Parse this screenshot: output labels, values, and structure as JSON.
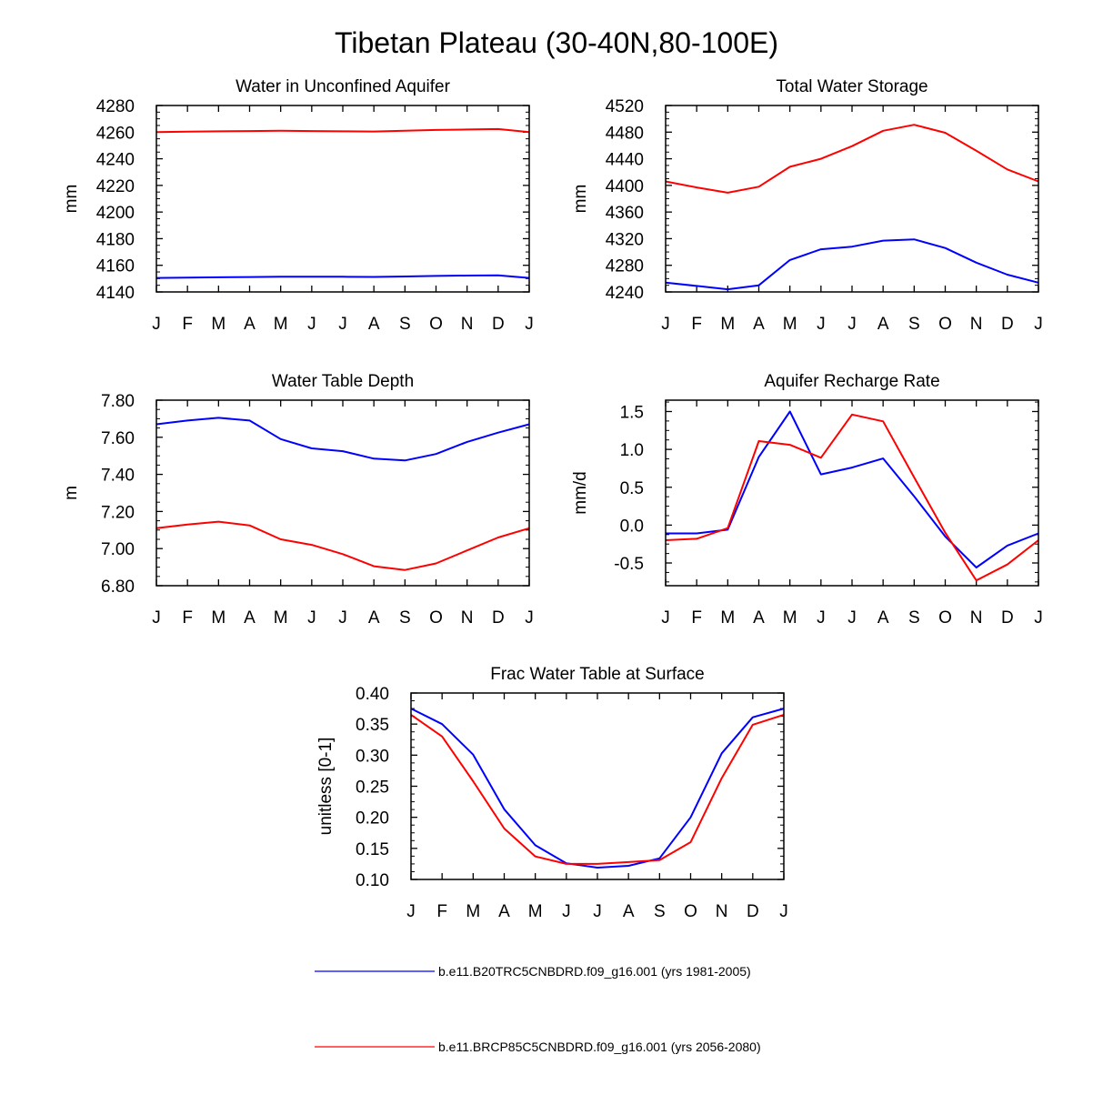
{
  "figure_title": "Tibetan Plateau (30-40N,80-100E)",
  "colors": {
    "series1": "#0000ff",
    "series2": "#ff0000"
  },
  "legend": [
    {
      "label": "b.e11.B20TRC5CNBDRD.f09_g16.001 (yrs 1981-2005)",
      "color": "#0000ff"
    },
    {
      "label": "b.e11.BRCP85C5CNBDRD.f09_g16.001 (yrs 2056-2080)",
      "color": "#ff0000"
    }
  ],
  "chart_data": [
    {
      "type": "line",
      "title": "Water in Unconfined Aquifer",
      "xlabel": "",
      "ylabel": "mm",
      "categories": [
        "J",
        "F",
        "M",
        "A",
        "M",
        "J",
        "J",
        "A",
        "S",
        "O",
        "N",
        "D",
        "J"
      ],
      "ylim": [
        4140,
        4280
      ],
      "yticks": [
        4140,
        4160,
        4180,
        4200,
        4220,
        4240,
        4260,
        4280
      ],
      "ytick_labels": [
        "4140",
        "4160",
        "4180",
        "4200",
        "4220",
        "4240",
        "4260",
        "4280"
      ],
      "series": [
        {
          "name": "b.e11.B20TRC5CNBDRD.f09_g16.001 (yrs 1981-2005)",
          "color": "#0000ff",
          "values": [
            4150.5,
            4150.8,
            4151.0,
            4151.2,
            4151.4,
            4151.5,
            4151.4,
            4151.3,
            4151.6,
            4152.0,
            4152.3,
            4152.5,
            4150.5
          ]
        },
        {
          "name": "b.e11.BRCP85C5CNBDRD.f09_g16.001 (yrs 2056-2080)",
          "color": "#ff0000",
          "values": [
            4260.0,
            4260.3,
            4260.6,
            4260.8,
            4261.0,
            4260.8,
            4260.6,
            4260.5,
            4261.0,
            4261.6,
            4262.0,
            4262.3,
            4260.0
          ]
        }
      ]
    },
    {
      "type": "line",
      "title": "Total Water Storage",
      "xlabel": "",
      "ylabel": "mm",
      "categories": [
        "J",
        "F",
        "M",
        "A",
        "M",
        "J",
        "J",
        "A",
        "S",
        "O",
        "N",
        "D",
        "J"
      ],
      "ylim": [
        4240,
        4520
      ],
      "yticks": [
        4240,
        4280,
        4320,
        4360,
        4400,
        4440,
        4480,
        4520
      ],
      "ytick_labels": [
        "4240",
        "4280",
        "4320",
        "4360",
        "4400",
        "4440",
        "4480",
        "4520"
      ],
      "series": [
        {
          "name": "b.e11.B20TRC5CNBDRD.f09_g16.001 (yrs 1981-2005)",
          "color": "#0000ff",
          "values": [
            4254,
            4249,
            4244,
            4250,
            4288,
            4304,
            4308,
            4317,
            4319,
            4306,
            4284,
            4266,
            4254
          ]
        },
        {
          "name": "b.e11.BRCP85C5CNBDRD.f09_g16.001 (yrs 2056-2080)",
          "color": "#ff0000",
          "values": [
            4406,
            4397,
            4389,
            4398,
            4428,
            4440,
            4459,
            4482,
            4491,
            4479,
            4452,
            4424,
            4406
          ]
        }
      ]
    },
    {
      "type": "line",
      "title": "Water Table Depth",
      "xlabel": "",
      "ylabel": "m",
      "categories": [
        "J",
        "F",
        "M",
        "A",
        "M",
        "J",
        "J",
        "A",
        "S",
        "O",
        "N",
        "D",
        "J"
      ],
      "ylim": [
        6.8,
        7.8
      ],
      "yticks": [
        6.8,
        7.0,
        7.2,
        7.4,
        7.6,
        7.8
      ],
      "ytick_labels": [
        "6.80",
        "7.00",
        "7.20",
        "7.40",
        "7.60",
        "7.80"
      ],
      "series": [
        {
          "name": "b.e11.B20TRC5CNBDRD.f09_g16.001 (yrs 1981-2005)",
          "color": "#0000ff",
          "values": [
            7.67,
            7.69,
            7.705,
            7.69,
            7.59,
            7.54,
            7.525,
            7.485,
            7.475,
            7.51,
            7.575,
            7.625,
            7.67
          ]
        },
        {
          "name": "b.e11.BRCP85C5CNBDRD.f09_g16.001 (yrs 2056-2080)",
          "color": "#ff0000",
          "values": [
            7.11,
            7.13,
            7.145,
            7.125,
            7.05,
            7.02,
            6.97,
            6.905,
            6.885,
            6.92,
            6.99,
            7.06,
            7.11
          ]
        }
      ]
    },
    {
      "type": "line",
      "title": "Aquifer Recharge Rate",
      "xlabel": "",
      "ylabel": "mm/d",
      "categories": [
        "J",
        "F",
        "M",
        "A",
        "M",
        "J",
        "J",
        "A",
        "S",
        "O",
        "N",
        "D",
        "J"
      ],
      "ylim": [
        -0.8,
        1.65
      ],
      "yticks": [
        -0.5,
        0.0,
        0.5,
        1.0,
        1.5
      ],
      "ytick_labels": [
        "-0.5",
        "0.0",
        "0.5",
        "1.0",
        "1.5"
      ],
      "series": [
        {
          "name": "b.e11.B20TRC5CNBDRD.f09_g16.001 (yrs 1981-2005)",
          "color": "#0000ff",
          "values": [
            -0.11,
            -0.11,
            -0.06,
            0.9,
            1.5,
            0.67,
            0.76,
            0.88,
            0.38,
            -0.15,
            -0.56,
            -0.27,
            -0.11
          ]
        },
        {
          "name": "b.e11.BRCP85C5CNBDRD.f09_g16.001 (yrs 2056-2080)",
          "color": "#ff0000",
          "values": [
            -0.2,
            -0.18,
            -0.04,
            1.11,
            1.06,
            0.89,
            1.46,
            1.37,
            0.63,
            -0.1,
            -0.73,
            -0.52,
            -0.2
          ]
        }
      ]
    },
    {
      "type": "line",
      "title": "Frac Water Table at Surface",
      "xlabel": "",
      "ylabel": "unitless [0-1]",
      "categories": [
        "J",
        "F",
        "M",
        "A",
        "M",
        "J",
        "J",
        "A",
        "S",
        "O",
        "N",
        "D",
        "J"
      ],
      "ylim": [
        0.1,
        0.4
      ],
      "yticks": [
        0.1,
        0.15,
        0.2,
        0.25,
        0.3,
        0.35,
        0.4
      ],
      "ytick_labels": [
        "0.10",
        "0.15",
        "0.20",
        "0.25",
        "0.30",
        "0.35",
        "0.40"
      ],
      "series": [
        {
          "name": "b.e11.B20TRC5CNBDRD.f09_g16.001 (yrs 1981-2005)",
          "color": "#0000ff",
          "values": [
            0.375,
            0.35,
            0.301,
            0.213,
            0.155,
            0.126,
            0.119,
            0.122,
            0.134,
            0.2,
            0.303,
            0.361,
            0.375
          ]
        },
        {
          "name": "b.e11.BRCP85C5CNBDRD.f09_g16.001 (yrs 2056-2080)",
          "color": "#ff0000",
          "values": [
            0.365,
            0.33,
            0.258,
            0.182,
            0.137,
            0.125,
            0.125,
            0.128,
            0.131,
            0.16,
            0.263,
            0.349,
            0.365
          ]
        }
      ]
    }
  ]
}
